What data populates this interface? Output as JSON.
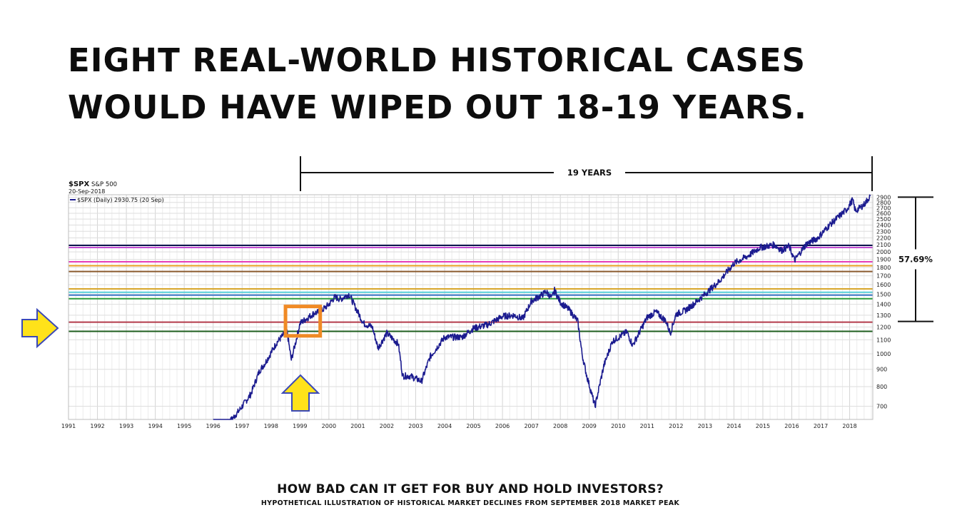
{
  "headline": {
    "line1": "EIGHT REAL-WORLD HISTORICAL CASES",
    "line2": "WOULD HAVE WIPED OUT 18-19 YEARS."
  },
  "footer": {
    "title": "HOW BAD CAN IT GET FOR BUY AND HOLD INVESTORS?",
    "subtitle": "HYPOTHETICAL ILLUSTRATION OF HISTORICAL MARKET DECLINES FROM SEPTEMBER 2018 MARKET PEAK"
  },
  "chart_data": {
    "type": "line",
    "ticker": "$SPX",
    "name": "S&P 500",
    "date": "20-Sep-2018",
    "legend": "$SPX (Daily) 2930.75 (20 Sep)",
    "span_label": "19 YEARS",
    "decline_label": "57.69%",
    "decline_range": [
      1240,
      2930.75
    ],
    "xlim": [
      1991,
      2018.8
    ],
    "ylim": [
      640,
      2950
    ],
    "y_scale": "log",
    "grid": true,
    "x_ticks": [
      "1991",
      "1992",
      "1993",
      "1994",
      "1995",
      "1996",
      "1997",
      "1998",
      "1999",
      "2000",
      "2001",
      "2002",
      "2003",
      "2004",
      "2005",
      "2006",
      "2007",
      "2008",
      "2009",
      "2010",
      "2011",
      "2012",
      "2013",
      "2014",
      "2015",
      "2016",
      "2017",
      "2018"
    ],
    "y_ticks": [
      "700",
      "800",
      "900",
      "1000",
      "1100",
      "1200",
      "1300",
      "1400",
      "1500",
      "1600",
      "1700",
      "1800",
      "1900",
      "2000",
      "2100",
      "2200",
      "2300",
      "2400",
      "2500",
      "2600",
      "2700",
      "2800",
      "2900"
    ],
    "series": [
      {
        "name": "$SPX",
        "color": "#1b1b8f",
        "x": [
          1996.0,
          1996.5,
          1996.9,
          1997.3,
          1997.6,
          1997.8,
          1998.2,
          1998.55,
          1998.7,
          1998.85,
          1999.0,
          1999.5,
          1999.7,
          2000.0,
          2000.2,
          2000.4,
          2000.7,
          2000.9,
          2001.2,
          2001.5,
          2001.7,
          2002.0,
          2002.4,
          2002.55,
          2002.8,
          2003.2,
          2003.5,
          2004.0,
          2004.6,
          2005.0,
          2005.5,
          2006.0,
          2006.4,
          2006.7,
          2007.0,
          2007.4,
          2007.5,
          2007.7,
          2007.8,
          2008.0,
          2008.3,
          2008.6,
          2008.75,
          2008.9,
          2009.2,
          2009.5,
          2009.8,
          2010.3,
          2010.5,
          2011.0,
          2011.3,
          2011.65,
          2011.8,
          2012.0,
          2012.3,
          2012.6,
          2013.0,
          2013.5,
          2014.0,
          2014.5,
          2014.9,
          2015.4,
          2015.65,
          2015.9,
          2016.1,
          2016.5,
          2016.9,
          2017.3,
          2017.9,
          2018.1,
          2018.2,
          2018.5,
          2018.72
        ],
        "y": [
          600,
          620,
          680,
          760,
          890,
          940,
          1080,
          1170,
          960,
          1080,
          1230,
          1320,
          1330,
          1400,
          1470,
          1450,
          1500,
          1380,
          1230,
          1200,
          1040,
          1150,
          1070,
          860,
          860,
          830,
          980,
          1120,
          1120,
          1190,
          1220,
          1290,
          1300,
          1270,
          1430,
          1500,
          1530,
          1460,
          1540,
          1420,
          1350,
          1250,
          1000,
          870,
          700,
          920,
          1090,
          1160,
          1060,
          1280,
          1330,
          1250,
          1150,
          1310,
          1340,
          1400,
          1500,
          1640,
          1850,
          1950,
          2060,
          2100,
          2020,
          2080,
          1890,
          2110,
          2200,
          2400,
          2670,
          2850,
          2640,
          2760,
          2930
        ]
      }
    ],
    "horizontal_lines": [
      {
        "y": 2090,
        "color": "#0d1350"
      },
      {
        "y": 2060,
        "color": "#c14bd1"
      },
      {
        "y": 1870,
        "color": "#e63db8"
      },
      {
        "y": 1820,
        "color": "#e8a023"
      },
      {
        "y": 1750,
        "color": "#8a5a2e"
      },
      {
        "y": 1555,
        "color": "#d8a62b"
      },
      {
        "y": 1520,
        "color": "#56cfd8"
      },
      {
        "y": 1490,
        "color": "#3c78c8"
      },
      {
        "y": 1455,
        "color": "#2a9c3a"
      },
      {
        "y": 1240,
        "color": "#b33a4a"
      },
      {
        "y": 1165,
        "color": "#1e5e1e"
      }
    ],
    "highlight_box": {
      "x": [
        1998.5,
        1999.7
      ],
      "y": [
        1130,
        1380
      ],
      "color": "#f08a25"
    },
    "arrows_color": "#ffe21a",
    "arrows_stroke": "#3b49b8"
  }
}
